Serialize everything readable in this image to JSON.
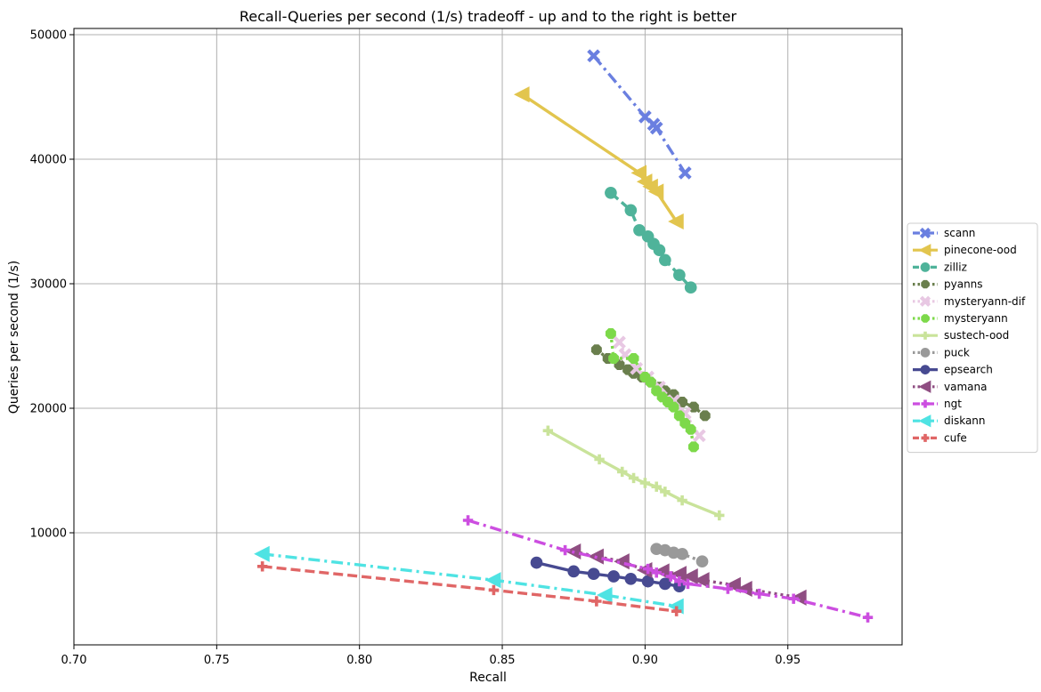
{
  "chart_data": {
    "type": "line",
    "title": "Recall-Queries per second (1/s) tradeoff - up and to the right is better",
    "xlabel": "Recall",
    "ylabel": "Queries per second (1/s)",
    "xlim": [
      0.7,
      0.99
    ],
    "ylim": [
      1000,
      50500
    ],
    "xticks": [
      0.7,
      0.75,
      0.8,
      0.85,
      0.9,
      0.95
    ],
    "xtick_labels": [
      "0.70",
      "0.75",
      "0.80",
      "0.85",
      "0.90",
      "0.95"
    ],
    "yticks": [
      10000,
      20000,
      30000,
      40000,
      50000
    ],
    "ytick_labels": [
      "10000",
      "20000",
      "30000",
      "40000",
      "50000"
    ],
    "grid": true,
    "legend_position": "right, outside plot",
    "series": [
      {
        "name": "scann",
        "color": "#6a7fe0",
        "marker": "X",
        "dash": "dashdot",
        "x": [
          0.882,
          0.9,
          0.903,
          0.904,
          0.914
        ],
        "y": [
          48300,
          43400,
          42800,
          42500,
          38900
        ]
      },
      {
        "name": "pinecone-ood",
        "color": "#e2c54e",
        "marker": "triangle-left",
        "dash": "solid",
        "x": [
          0.857,
          0.898,
          0.9,
          0.902,
          0.904,
          0.911
        ],
        "y": [
          45200,
          38900,
          38200,
          37800,
          37400,
          35000
        ]
      },
      {
        "name": "zilliz",
        "color": "#4fb39a",
        "marker": "circle",
        "dash": "dashed",
        "x": [
          0.888,
          0.895,
          0.898,
          0.901,
          0.903,
          0.905,
          0.907,
          0.912,
          0.916
        ],
        "y": [
          37300,
          35900,
          34300,
          33800,
          33200,
          32700,
          31900,
          30700,
          29700
        ]
      },
      {
        "name": "pyanns",
        "color": "#6a7f4d",
        "marker": "octagon",
        "dash": "dotted",
        "x": [
          0.883,
          0.887,
          0.891,
          0.894,
          0.896,
          0.899,
          0.902,
          0.905,
          0.907,
          0.91,
          0.913,
          0.917,
          0.921
        ],
        "y": [
          24700,
          24000,
          23500,
          23100,
          22800,
          22500,
          22100,
          21700,
          21400,
          21100,
          20500,
          20100,
          19400
        ]
      },
      {
        "name": "mysteryann-dif",
        "color": "#e8c8e3",
        "marker": "X",
        "dash": "dotted",
        "x": [
          0.891,
          0.893,
          0.897,
          0.901,
          0.905,
          0.91,
          0.914,
          0.919
        ],
        "y": [
          25300,
          24300,
          23200,
          22500,
          21700,
          20600,
          19600,
          17800
        ]
      },
      {
        "name": "mysteryann",
        "color": "#7dd94a",
        "marker": "octagon",
        "dash": "dotted",
        "x": [
          0.888,
          0.889,
          0.896,
          0.9,
          0.902,
          0.904,
          0.906,
          0.908,
          0.91,
          0.912,
          0.914,
          0.916,
          0.917
        ],
        "y": [
          26000,
          24000,
          24000,
          22500,
          22100,
          21400,
          20900,
          20500,
          20100,
          19400,
          18800,
          18300,
          16900
        ]
      },
      {
        "name": "sustech-ood",
        "color": "#c9e39a",
        "marker": "plus",
        "dash": "solid",
        "x": [
          0.866,
          0.884,
          0.892,
          0.896,
          0.9,
          0.904,
          0.907,
          0.913,
          0.926
        ],
        "y": [
          18200,
          15900,
          14900,
          14400,
          14000,
          13700,
          13300,
          12600,
          11400
        ]
      },
      {
        "name": "puck",
        "color": "#999999",
        "marker": "circle",
        "dash": "dotted",
        "x": [
          0.904,
          0.907,
          0.91,
          0.913,
          0.92
        ],
        "y": [
          8700,
          8600,
          8400,
          8300,
          7700
        ]
      },
      {
        "name": "epsearch",
        "color": "#474a91",
        "marker": "circle",
        "dash": "solid",
        "x": [
          0.862,
          0.875,
          0.882,
          0.889,
          0.895,
          0.901,
          0.907,
          0.912
        ],
        "y": [
          7600,
          6900,
          6700,
          6500,
          6300,
          6100,
          5900,
          5700
        ]
      },
      {
        "name": "vamana",
        "color": "#8f4e82",
        "marker": "triangle-left",
        "dash": "dotted",
        "x": [
          0.875,
          0.883,
          0.892,
          0.9,
          0.906,
          0.912,
          0.916,
          0.92,
          0.931,
          0.935,
          0.954
        ],
        "y": [
          8500,
          8100,
          7700,
          7000,
          6900,
          6700,
          6500,
          6200,
          5800,
          5500,
          4800
        ]
      },
      {
        "name": "ngt",
        "color": "#cc4ee0",
        "marker": "plus",
        "dash": "dashdot",
        "x": [
          0.838,
          0.872,
          0.901,
          0.904,
          0.909,
          0.912,
          0.915,
          0.929,
          0.94,
          0.952,
          0.978
        ],
        "y": [
          11000,
          8600,
          7100,
          6800,
          6500,
          6100,
          5900,
          5500,
          5100,
          4700,
          3200
        ]
      },
      {
        "name": "diskann",
        "color": "#4fe3e3",
        "marker": "triangle-left",
        "dash": "dashdot",
        "x": [
          0.766,
          0.847,
          0.886,
          0.911
        ],
        "y": [
          8300,
          6200,
          5000,
          4100
        ]
      },
      {
        "name": "cufe",
        "color": "#e06666",
        "marker": "plus",
        "dash": "dashed",
        "x": [
          0.766,
          0.847,
          0.883,
          0.911
        ],
        "y": [
          7300,
          5400,
          4500,
          3700
        ]
      }
    ]
  }
}
